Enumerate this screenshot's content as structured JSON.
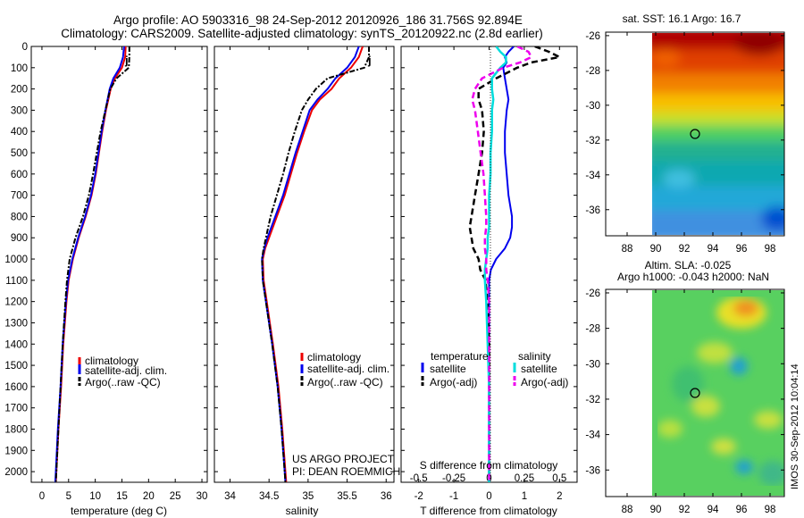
{
  "header": {
    "line1": "Argo profile: AO 5903316_98 24-Sep-2012 20120926_186 31.756S 92.894E",
    "line2": "Climatology: CARS2009. Satellite-adjusted climatology: synTS_20120922.nc (2.8d earlier)"
  },
  "side_stamp": "IMOS 30-Sep-2012 10:04:14",
  "colors": {
    "climatology": "#ee0000",
    "satellite": "#0000ee",
    "argo": "#000000",
    "cyan": "#00dddd",
    "magenta": "#ee00ee"
  },
  "chart_data": [
    {
      "type": "line",
      "panel": "temperature",
      "xlabel": "temperature (deg C)",
      "xlim": [
        -2,
        31
      ],
      "ylim": [
        0,
        2050
      ],
      "y_inverted": true,
      "xticks": [
        0,
        5,
        10,
        15,
        20,
        25,
        30
      ],
      "yticks": [
        0,
        100,
        200,
        300,
        400,
        500,
        600,
        700,
        800,
        900,
        1000,
        1100,
        1200,
        1300,
        1400,
        1500,
        1600,
        1700,
        1800,
        1900,
        2000
      ],
      "marker_label": "j",
      "legend": [
        "climatology",
        "satellite-adj. clim.",
        "Argo(..raw -QC)"
      ],
      "depth": [
        0,
        50,
        100,
        150,
        200,
        300,
        400,
        500,
        600,
        700,
        800,
        900,
        1000,
        1100,
        1200,
        1400,
        1600,
        1800,
        2000,
        2050
      ],
      "series": [
        {
          "name": "climatology",
          "values": [
            15.7,
            15.6,
            15.0,
            13.7,
            12.9,
            12.0,
            11.3,
            10.7,
            10.1,
            9.3,
            8.2,
            6.9,
            5.8,
            5.0,
            4.6,
            4.0,
            3.6,
            3.1,
            2.7,
            2.6
          ]
        },
        {
          "name": "satellite-adj. clim.",
          "values": [
            15.4,
            15.2,
            14.6,
            13.4,
            12.7,
            11.9,
            11.2,
            10.6,
            10.0,
            9.2,
            8.1,
            6.8,
            5.7,
            4.9,
            4.5,
            3.9,
            3.5,
            3.0,
            2.6,
            2.5
          ]
        },
        {
          "name": "Argo(..raw -QC)",
          "values": [
            16.4,
            16.4,
            16.3,
            14.0,
            12.8,
            11.9,
            11.0,
            10.3,
            9.6,
            8.8,
            7.7,
            6.3,
            5.2,
            4.7,
            4.4,
            3.9,
            3.5,
            3.1,
            2.7,
            2.6
          ]
        }
      ]
    },
    {
      "type": "line",
      "panel": "salinity",
      "xlabel": "salinity",
      "xlim": [
        33.8,
        36.1
      ],
      "ylim": [
        0,
        2050
      ],
      "y_inverted": true,
      "xticks": [
        34,
        34.5,
        35,
        35.5,
        36
      ],
      "marker_label": "j",
      "legend": [
        "climatology",
        "satellite-adj. clim.",
        "Argo(..raw -QC)"
      ],
      "depth": [
        0,
        50,
        100,
        150,
        200,
        250,
        300,
        400,
        500,
        600,
        700,
        800,
        900,
        950,
        1000,
        1100,
        1200,
        1400,
        1600,
        1800,
        2000,
        2050
      ],
      "series": [
        {
          "name": "climatology",
          "values": [
            35.7,
            35.65,
            35.55,
            35.4,
            35.3,
            35.15,
            35.05,
            34.95,
            34.86,
            34.78,
            34.7,
            34.6,
            34.5,
            34.45,
            34.42,
            34.43,
            34.47,
            34.55,
            34.62,
            34.67,
            34.71,
            34.72
          ]
        },
        {
          "name": "satellite-adj. clim.",
          "values": [
            35.65,
            35.6,
            35.5,
            35.35,
            35.25,
            35.12,
            35.02,
            34.93,
            34.84,
            34.76,
            34.68,
            34.58,
            34.48,
            34.44,
            34.41,
            34.42,
            34.46,
            34.54,
            34.61,
            34.66,
            34.7,
            34.71
          ]
        },
        {
          "name": "Argo(..raw -QC)",
          "values": [
            35.78,
            35.78,
            35.72,
            35.25,
            35.1,
            35.0,
            34.92,
            34.83,
            34.75,
            34.68,
            34.6,
            34.52,
            34.46,
            34.43,
            34.41,
            34.42,
            34.46,
            34.54,
            34.61,
            34.66,
            34.7,
            34.71
          ]
        }
      ],
      "annotations": [
        "US ARGO PROJECT",
        "PI: DEAN ROEMMICH"
      ]
    },
    {
      "type": "line",
      "panel": "difference",
      "xlabel": "T difference from climatology",
      "xlabel_top": "S difference from climatology",
      "xlim": [
        -2.5,
        2.5
      ],
      "ylim": [
        0,
        2050
      ],
      "y_inverted": true,
      "xticks": [
        -2,
        -1,
        0,
        1,
        2
      ],
      "sticks": [
        "-0.5",
        "-0.25",
        "0",
        "0.25",
        "0.5"
      ],
      "legend": {
        "temperature_title": "temperature",
        "salinity_title": "salinity",
        "items": [
          "satellite",
          "Argo(-adj)",
          "satellite",
          "Argo(-adj)"
        ]
      },
      "depth": [
        0,
        25,
        50,
        75,
        100,
        150,
        200,
        250,
        300,
        400,
        500,
        600,
        700,
        800,
        850,
        900,
        950,
        1000,
        1050,
        1100,
        1200,
        1400,
        1600,
        1800,
        2000,
        2050
      ],
      "series": [
        {
          "name": "T satellite",
          "values": [
            0.7,
            0.55,
            0.45,
            0.5,
            0.4,
            0.45,
            0.5,
            0.55,
            0.5,
            0.45,
            0.45,
            0.5,
            0.55,
            0.65,
            0.65,
            0.6,
            0.45,
            0.2,
            0.05,
            0.0,
            0.0,
            0.0,
            0.0,
            0.0,
            0.0,
            0.0
          ]
        },
        {
          "name": "T Argo(-adj)",
          "values": [
            1.3,
            1.7,
            2.0,
            1.2,
            0.8,
            0.2,
            -0.3,
            -0.3,
            -0.2,
            -0.15,
            -0.2,
            -0.3,
            -0.4,
            -0.5,
            -0.55,
            -0.5,
            -0.45,
            -0.3,
            -0.25,
            -0.1,
            -0.05,
            0.0,
            0.0,
            0.0,
            0.0,
            0.0
          ]
        },
        {
          "name": "S satellite",
          "values": [
            0.05,
            0.08,
            0.12,
            0.12,
            0.08,
            0.02,
            0.02,
            0.03,
            0.02,
            0.02,
            0.01,
            0.01,
            0.0,
            0.0,
            0.0,
            -0.01,
            -0.01,
            -0.02,
            -0.03,
            -0.03,
            -0.02,
            -0.01,
            0.0,
            0.0,
            0.0,
            0.0
          ]
        },
        {
          "name": "S Argo(-adj)",
          "values": [
            0.2,
            0.28,
            0.3,
            0.22,
            0.1,
            -0.05,
            -0.1,
            -0.12,
            -0.1,
            -0.08,
            -0.06,
            -0.04,
            -0.03,
            -0.02,
            -0.02,
            -0.03,
            -0.03,
            -0.02,
            -0.02,
            -0.01,
            0.0,
            0.0,
            0.0,
            0.0,
            0.0,
            0.0
          ]
        }
      ]
    },
    {
      "type": "heatmap",
      "panel": "sst_map",
      "title": "sat. SST: 16.1  Argo: 16.7",
      "xticks": [
        88,
        90,
        92,
        94,
        96,
        98
      ],
      "yticks": [
        -26,
        -28,
        -30,
        -32,
        -34,
        -36
      ],
      "xlim": [
        86.5,
        99
      ],
      "ylim": [
        -37.5,
        -25.8
      ],
      "data_extent_lon": [
        90,
        99
      ],
      "argo_position": {
        "lon": 92.894,
        "lat": -31.756
      },
      "colormap": "jet"
    },
    {
      "type": "heatmap",
      "panel": "sla_map",
      "title_line1": "Altim. SLA: -0.025",
      "title_line2": "Argo h1000: -0.043 h2000: NaN",
      "xticks": [
        88,
        90,
        92,
        94,
        96,
        98
      ],
      "yticks": [
        -26,
        -28,
        -30,
        -32,
        -34,
        -36
      ],
      "xlim": [
        86.5,
        99
      ],
      "ylim": [
        -37.5,
        -25.8
      ],
      "data_extent_lon": [
        90,
        99
      ],
      "argo_position": {
        "lon": 92.894,
        "lat": -31.756
      },
      "colormap": "jet"
    }
  ]
}
